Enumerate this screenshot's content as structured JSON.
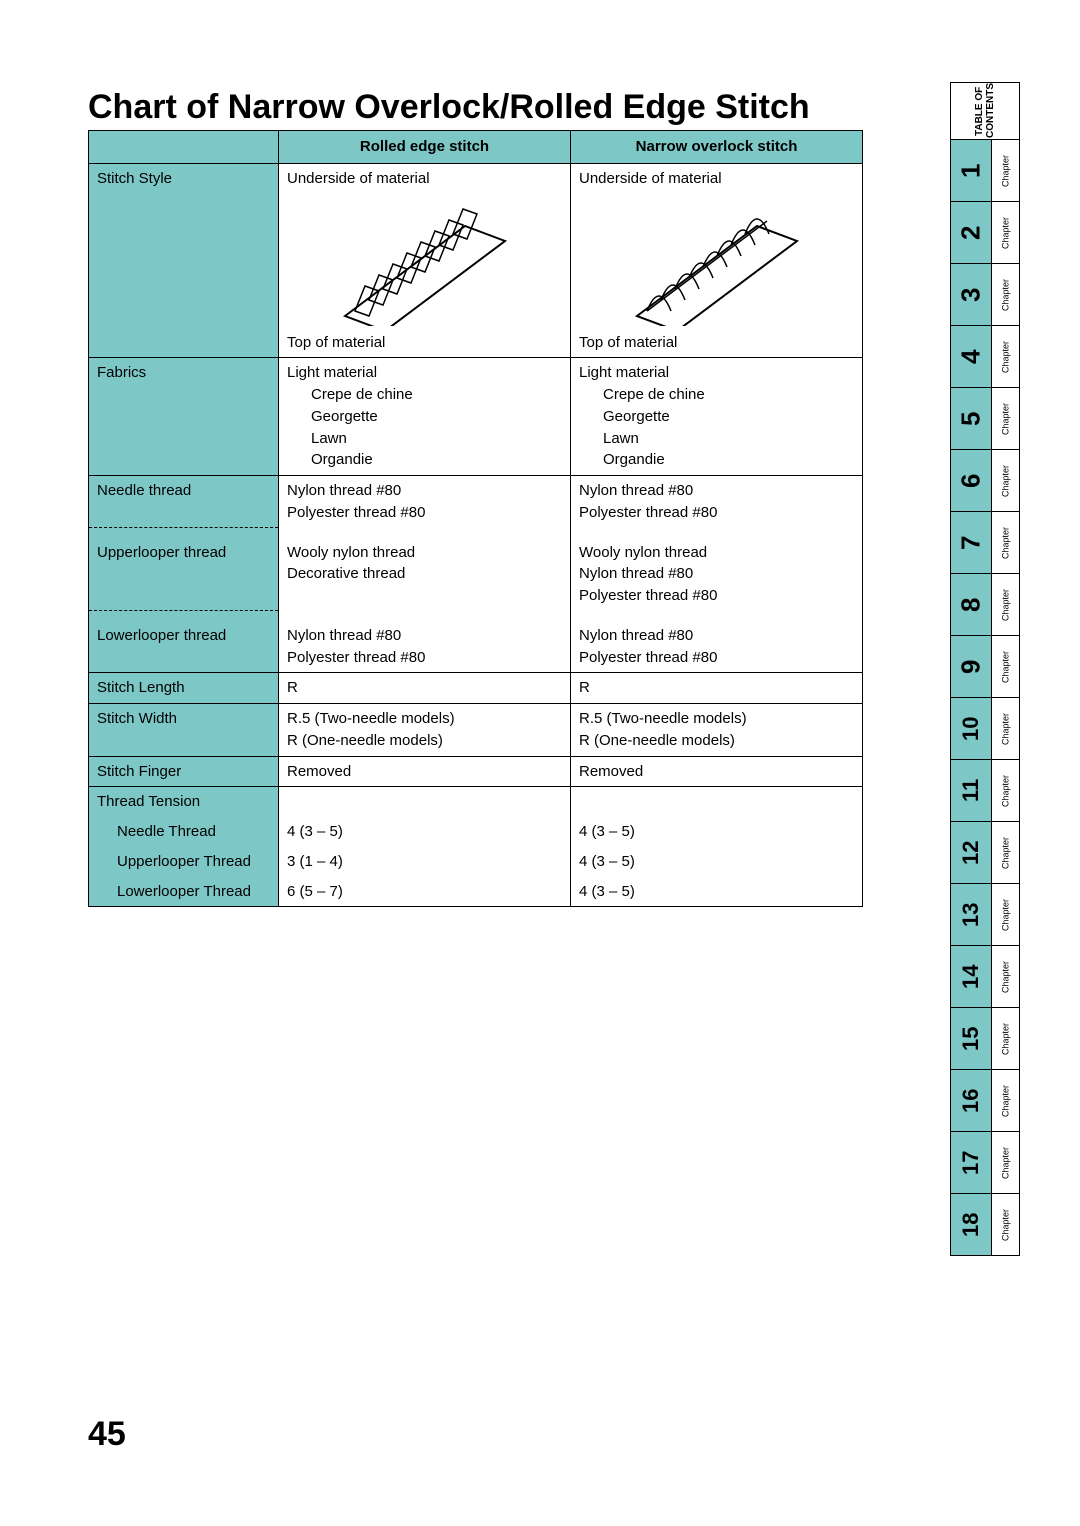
{
  "title": "Chart of Narrow Overlock/Rolled Edge Stitch",
  "page_number": "45",
  "colors": {
    "header_bg": "#7ec7c7",
    "tab_bg": "#7ec7c7",
    "border": "#000000",
    "text": "#000000",
    "page_bg": "#ffffff"
  },
  "table": {
    "header": {
      "col0": "",
      "col1": "Rolled edge stitch",
      "col2": "Narrow overlock stitch"
    },
    "rows": [
      {
        "label": "Stitch Style",
        "c1_top": "Underside of material",
        "c1_bot": "Top of material",
        "c2_top": "Underside of material",
        "c2_bot": "Top of material"
      },
      {
        "label": "Fabrics",
        "c1": "Light material",
        "c1_sub": [
          "Crepe de chine",
          "Georgette",
          "Lawn",
          "Organdie"
        ],
        "c2": "Light material",
        "c2_sub": [
          "Crepe de chine",
          "Georgette",
          "Lawn",
          "Organdie"
        ]
      },
      {
        "label": "Needle thread",
        "c1_lines": [
          "Nylon thread #80",
          "Polyester thread #80"
        ],
        "c2_lines": [
          "Nylon thread #80",
          "Polyester thread #80"
        ]
      },
      {
        "label": "Upperlooper thread",
        "c1_lines": [
          "Wooly nylon thread",
          "Decorative thread"
        ],
        "c2_lines": [
          "Wooly nylon thread",
          "Nylon thread #80",
          "Polyester thread #80"
        ]
      },
      {
        "label": "Lowerlooper thread",
        "c1_lines": [
          "Nylon thread #80",
          "Polyester thread #80"
        ],
        "c2_lines": [
          "Nylon thread #80",
          "Polyester thread #80"
        ]
      },
      {
        "label": "Stitch Length",
        "c1": "R",
        "c2": "R"
      },
      {
        "label": "Stitch Width",
        "c1_lines": [
          "R.5 (Two-needle models)",
          "R (One-needle models)"
        ],
        "c2_lines": [
          "R.5 (Two-needle models)",
          "R (One-needle models)"
        ]
      },
      {
        "label": "Stitch Finger",
        "c1": "Removed",
        "c2": "Removed"
      },
      {
        "label": "Thread Tension",
        "c1": "",
        "c2": ""
      },
      {
        "label": "Needle Thread",
        "indent": true,
        "c1": "4 (3 – 5)",
        "c2": "4 (3 – 5)"
      },
      {
        "label": "Upperlooper Thread",
        "indent": true,
        "c1": "3 (1 – 4)",
        "c2": "4 (3 – 5)"
      },
      {
        "label": "Lowerlooper Thread",
        "indent": true,
        "c1": "6 (5 – 7)",
        "c2": "4 (3 – 5)"
      }
    ]
  },
  "sidebar": {
    "toc": "TABLE OF CONTENTS",
    "chapter_word": "Chapter",
    "chapters": [
      "1",
      "2",
      "3",
      "4",
      "5",
      "6",
      "7",
      "8",
      "9",
      "10",
      "11",
      "12",
      "13",
      "14",
      "15",
      "16",
      "17",
      "18"
    ]
  }
}
